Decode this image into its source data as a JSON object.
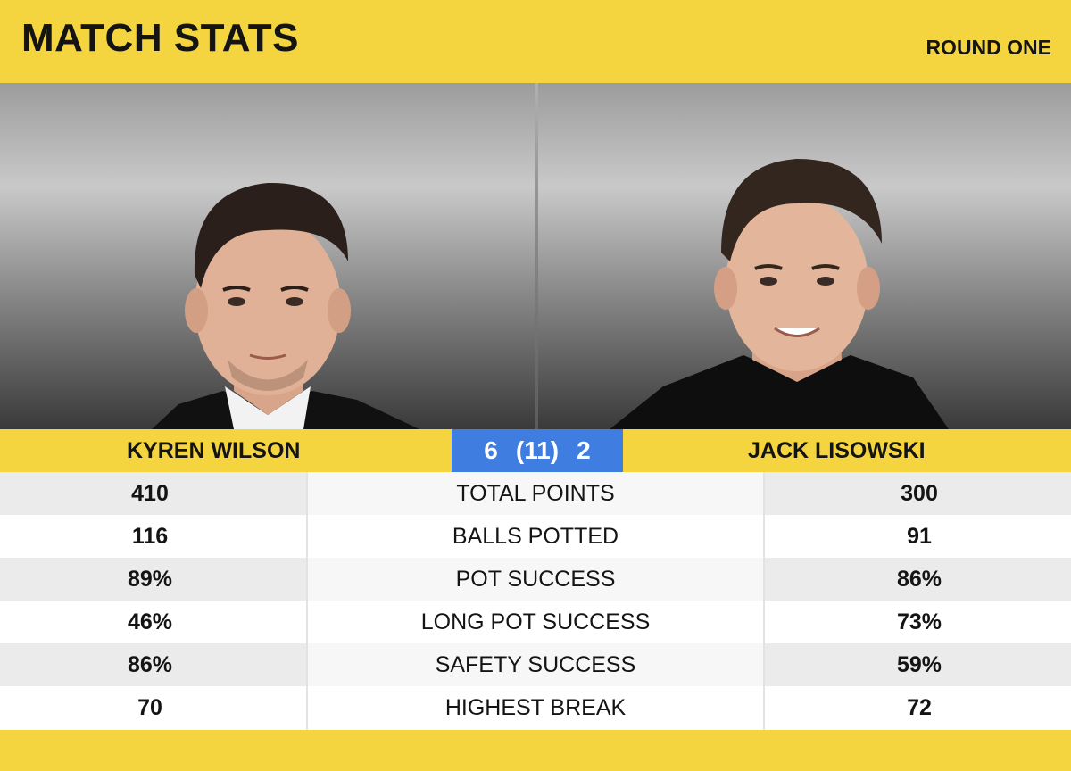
{
  "header": {
    "title": "MATCH STATS",
    "round": "ROUND ONE"
  },
  "players": {
    "left": {
      "name": "KYREN WILSON"
    },
    "right": {
      "name": "JACK LISOWSKI"
    }
  },
  "score": {
    "left": "6",
    "frames": "(11)",
    "right": "2"
  },
  "stats": [
    {
      "label": "TOTAL POINTS",
      "left": "410",
      "right": "300"
    },
    {
      "label": "BALLS POTTED",
      "left": "116",
      "right": "91"
    },
    {
      "label": "POT SUCCESS",
      "left": "89%",
      "right": "86%"
    },
    {
      "label": "LONG POT SUCCESS",
      "left": "46%",
      "right": "73%"
    },
    {
      "label": "SAFETY SUCCESS",
      "left": "86%",
      "right": "59%"
    },
    {
      "label": "HIGHEST BREAK",
      "left": "70",
      "right": "72"
    }
  ],
  "colors": {
    "accent_yellow": "#f4d43f",
    "score_blue": "#3f7de0",
    "text_dark": "#141414"
  }
}
